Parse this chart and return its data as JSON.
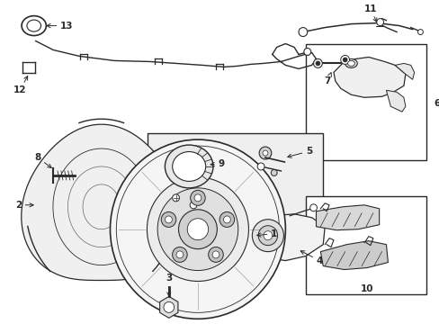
{
  "bg_color": "#ffffff",
  "line_color": "#2a2a2a",
  "box_fill_dark": "#d8d8d8",
  "box_fill_light": "#efefef",
  "label_color": "#000000",
  "fig_w": 4.89,
  "fig_h": 3.6,
  "dpi": 100
}
